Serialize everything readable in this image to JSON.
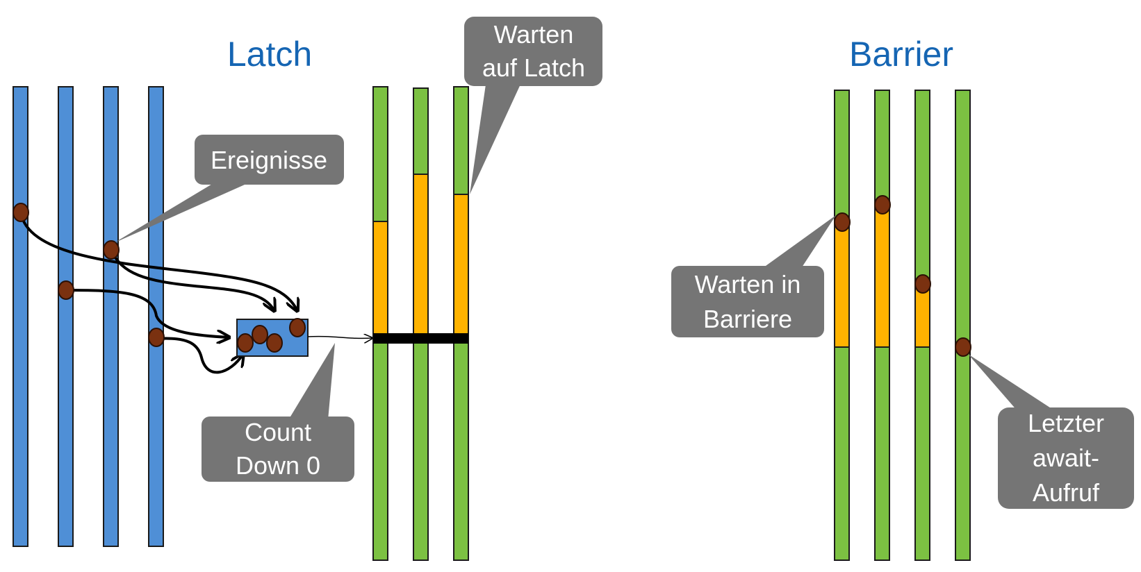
{
  "latch": {
    "title": "Latch",
    "events_label": "Ereignisse",
    "countdown_label_line1": "Count",
    "countdown_label_line2": "Down 0",
    "wait_label_line1": "Warten",
    "wait_label_line2": "auf Latch"
  },
  "barrier": {
    "title": "Barrier",
    "wait_label_line1": "Warten in",
    "wait_label_line2": "Barriere",
    "last_call_line1": "Letzter",
    "last_call_line2": "await-",
    "last_call_line3": "Aufruf"
  },
  "colors": {
    "title": "#1565b3",
    "event_thread": "#4f8fd6",
    "running_thread": "#7cc142",
    "waiting_segment": "#ffb300",
    "event": "#7a3110",
    "callout": "#757575"
  }
}
